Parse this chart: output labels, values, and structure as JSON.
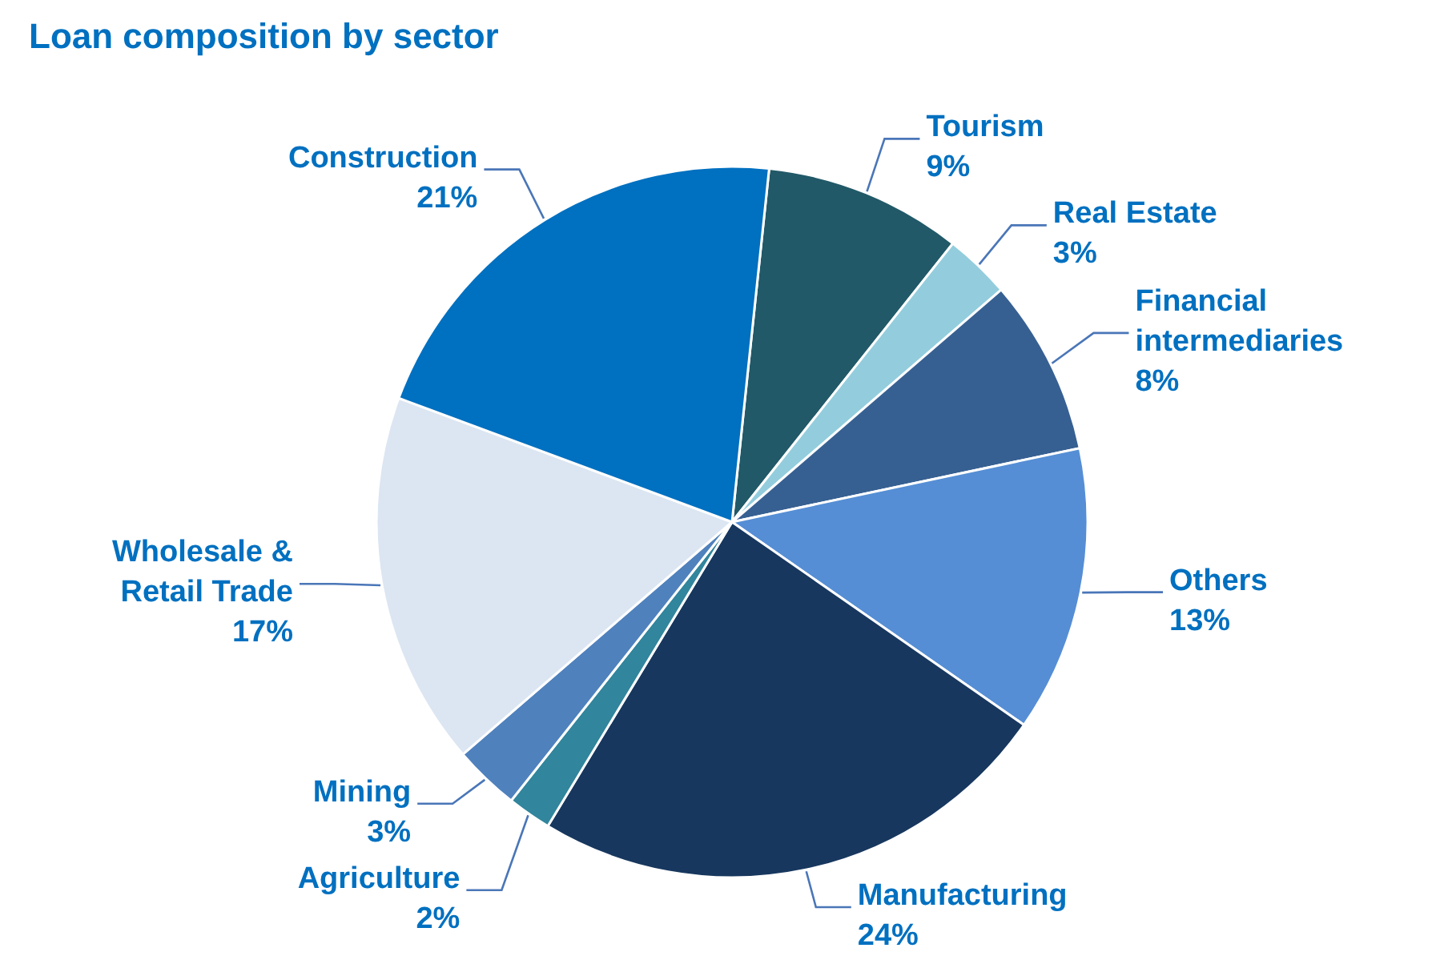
{
  "chart_data": {
    "type": "pie",
    "title": "Loan composition by sector",
    "categories": [
      "Tourism",
      "Real Estate",
      "Financial intermediaries",
      "Others",
      "Manufacturing",
      "Agriculture",
      "Mining",
      "Wholesale & Retail Trade",
      "Construction"
    ],
    "values": [
      9,
      3,
      8,
      13,
      24,
      2,
      3,
      17,
      21
    ],
    "value_labels": [
      "9%",
      "3%",
      "8%",
      "13%",
      "24%",
      "2%",
      "3%",
      "17%",
      "21%"
    ],
    "colors": [
      "#215968",
      "#93cddd",
      "#376092",
      "#558ed5",
      "#17375e",
      "#31859c",
      "#4f81bd",
      "#dce6f2",
      "#0070c0"
    ]
  }
}
